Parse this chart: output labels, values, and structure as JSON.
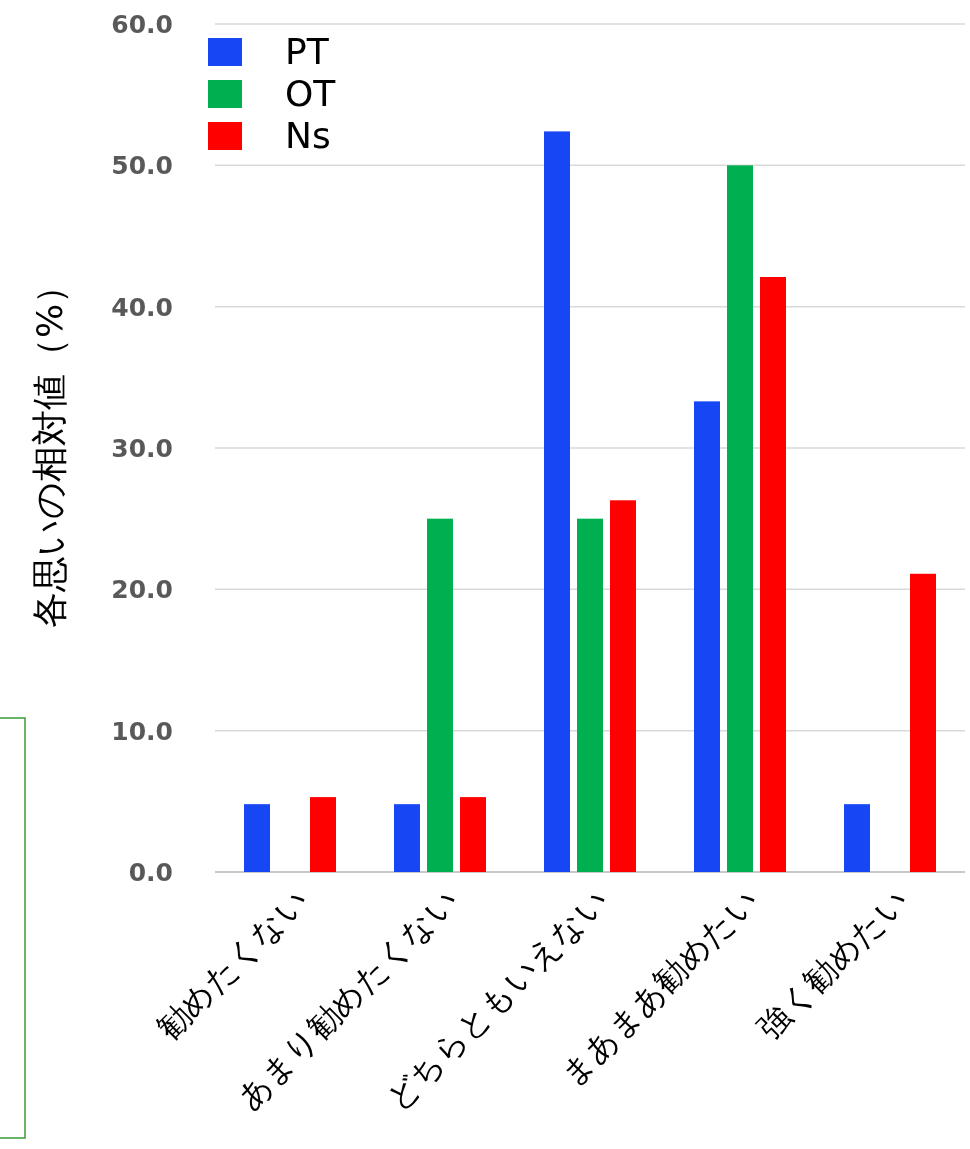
{
  "chart_data": {
    "type": "bar",
    "ylabel": "各思いの相対値（%）",
    "categories": [
      "勧めたくない",
      "あまり勧めたくない",
      "どちらともいえない",
      "まあまあ勧めたい",
      "強く勧めたい"
    ],
    "series": [
      {
        "name": "PT",
        "color": "#1747f5",
        "values": [
          4.8,
          4.8,
          52.4,
          33.3,
          4.8
        ]
      },
      {
        "name": "OT",
        "color": "#00b050",
        "values": [
          0,
          25.0,
          25.0,
          50.0,
          0
        ]
      },
      {
        "name": "Ns",
        "color": "#ff0000",
        "values": [
          5.3,
          5.3,
          26.3,
          42.1,
          21.1
        ]
      }
    ],
    "ylim": [
      0,
      60
    ],
    "yticks": [
      {
        "value": 0,
        "label": "0.0"
      },
      {
        "value": 10,
        "label": "10.0"
      },
      {
        "value": 20,
        "label": "20.0"
      },
      {
        "value": 30,
        "label": "30.0"
      },
      {
        "value": 40,
        "label": "40.0"
      },
      {
        "value": 50,
        "label": "50.0"
      },
      {
        "value": 60,
        "label": "60.0"
      }
    ],
    "grid": "y",
    "legend": "top left"
  }
}
